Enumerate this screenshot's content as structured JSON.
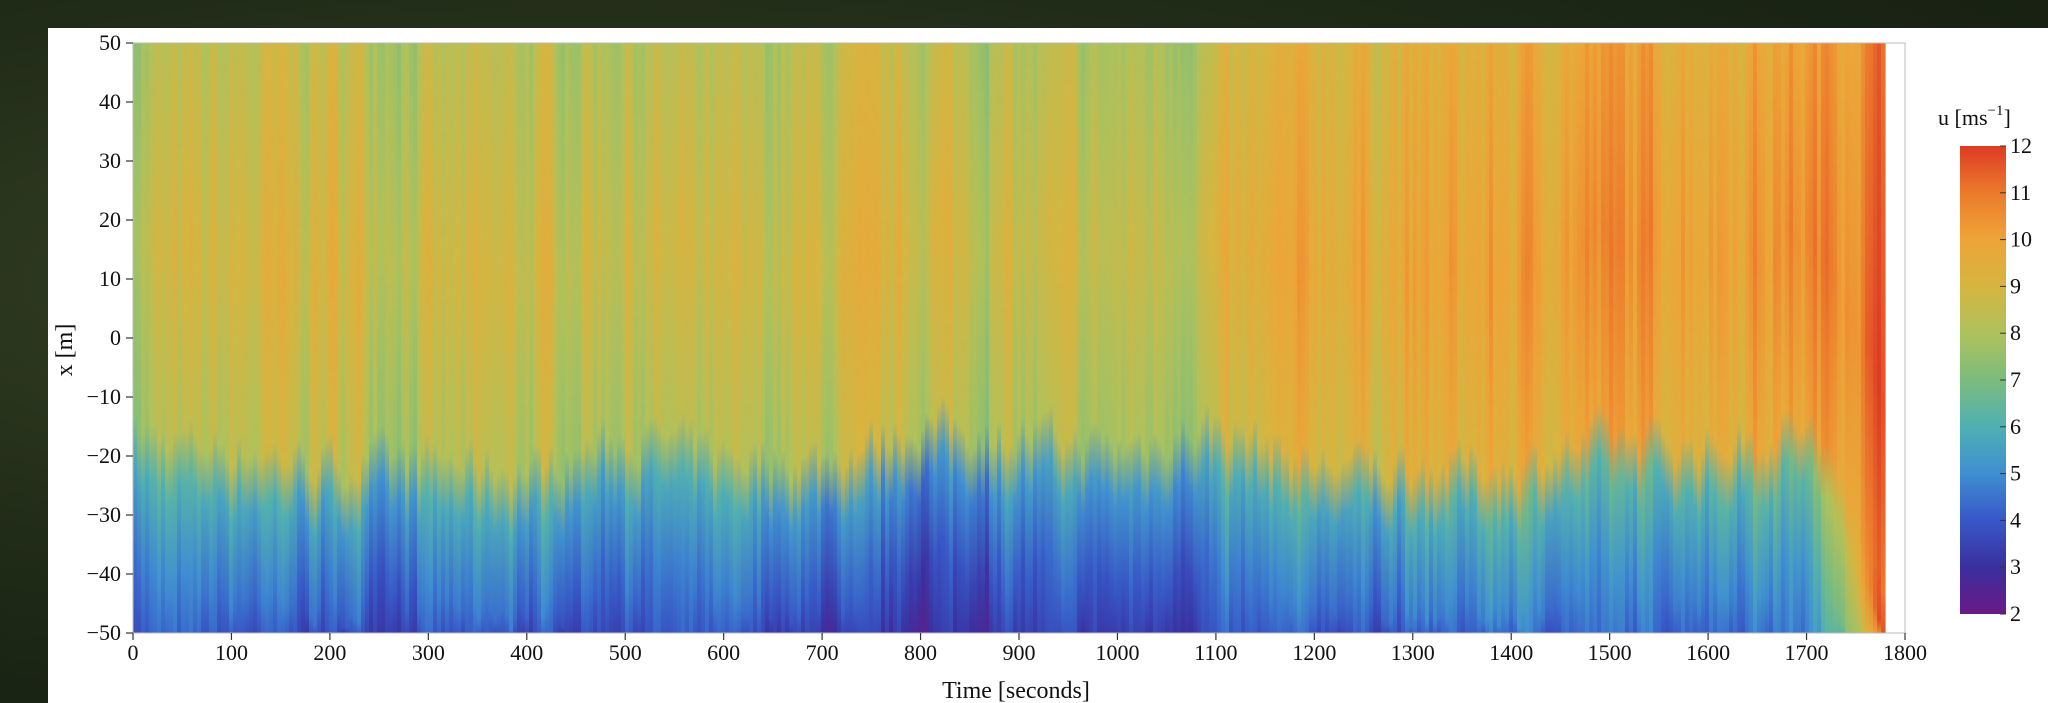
{
  "chart_data": {
    "type": "heatmap",
    "xlabel": "Time [seconds]",
    "ylabel": "x [m]",
    "xlim": [
      0,
      1800
    ],
    "ylim": [
      -50,
      50
    ],
    "xticks": [
      0,
      100,
      200,
      300,
      400,
      500,
      600,
      700,
      800,
      900,
      1000,
      1100,
      1200,
      1300,
      1400,
      1500,
      1600,
      1700,
      1800
    ],
    "yticks": [
      50,
      40,
      30,
      20,
      10,
      0,
      -10,
      -20,
      -30,
      -40,
      -50
    ],
    "data_extent_x": [
      0,
      1780
    ],
    "colorbar": {
      "label_base": "u [ms",
      "label_sup": "−1",
      "label_end": "]",
      "ticks": [
        12,
        11,
        10,
        9,
        8,
        7,
        6,
        5,
        4,
        3,
        2
      ],
      "range": [
        2,
        12
      ],
      "colors": [
        "#6a1a86",
        "#3a2f9e",
        "#3758c8",
        "#3f8fd2",
        "#4fb0b2",
        "#7cbc7c",
        "#aec25c",
        "#d6b540",
        "#eea438",
        "#ec7a2c",
        "#dd3b24"
      ]
    },
    "time_bins": [
      0,
      100,
      200,
      300,
      400,
      500,
      600,
      700,
      800,
      900,
      1000,
      1100,
      1200,
      1300,
      1400,
      1500,
      1600,
      1700,
      1780
    ],
    "upper_region_speed_ms": [
      8.2,
      8.6,
      8.9,
      8.3,
      8.5,
      8.6,
      8.2,
      8.5,
      8.8,
      8.3,
      8.2,
      8.6,
      9.6,
      9.5,
      9.8,
      10.3,
      10.0,
      10.4,
      11.2
    ],
    "lower_region_speed_ms": [
      4.8,
      4.5,
      4.3,
      4.4,
      4.3,
      4.5,
      4.4,
      3.7,
      3.6,
      4.0,
      3.9,
      4.3,
      4.6,
      4.5,
      5.0,
      4.9,
      5.1,
      5.3,
      10.5
    ],
    "transition_x_m": [
      -20,
      -22,
      -25,
      -24,
      -26,
      -20,
      -23,
      -24,
      -18,
      -20,
      -22,
      -18,
      -25,
      -25,
      -25,
      -20,
      -22,
      -18,
      -45
    ]
  }
}
